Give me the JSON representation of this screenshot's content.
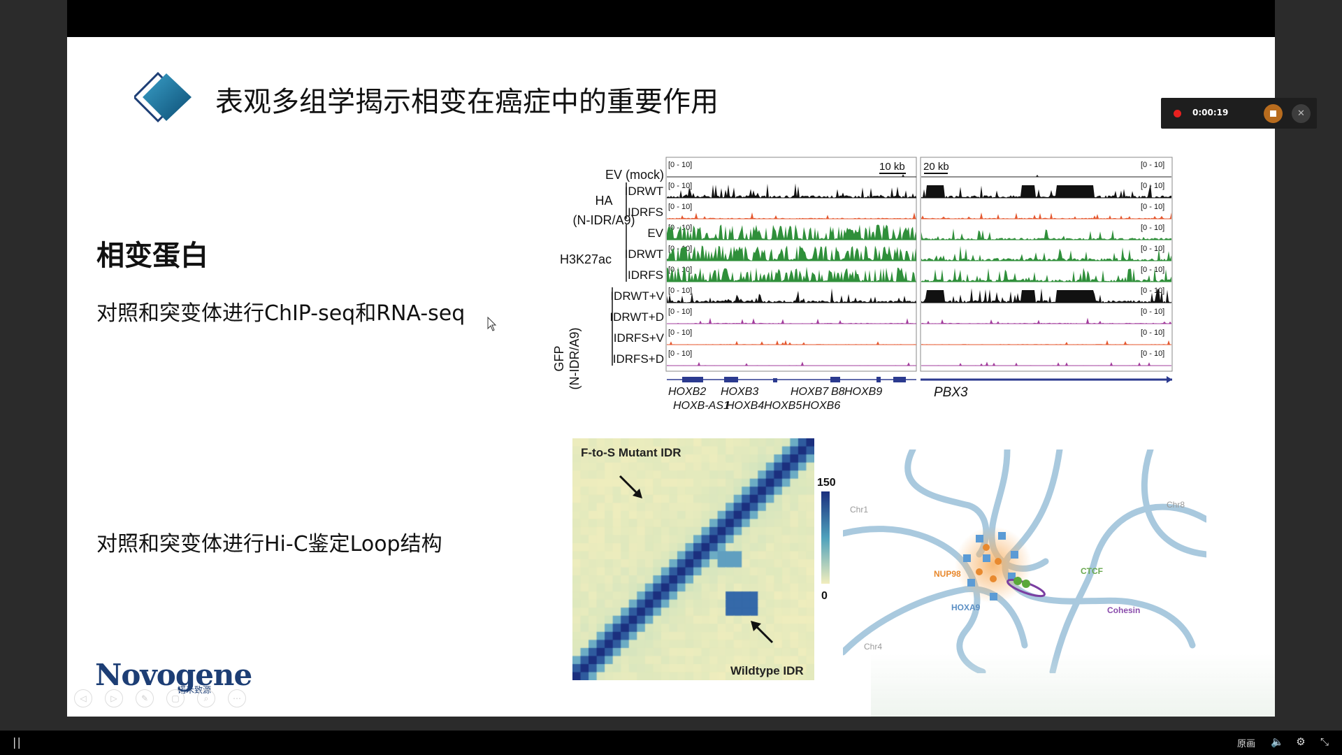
{
  "slide": {
    "title": "表观多组学揭示相变在癌症中的重要作用",
    "section_title": "相变蛋白",
    "desc_chip": "对照和突变体进行ChIP-seq和RNA-seq",
    "desc_hic": "对照和突变体进行Hi-C鉴定Loop结构"
  },
  "recorder": {
    "time": "0:00:19"
  },
  "logo": {
    "text": "Novogene",
    "sub": "诺禾致源"
  },
  "bottom_bar": {
    "original_label": "原画"
  },
  "figure_tracks": {
    "scale_left": "10 kb",
    "scale_right": "20 kb",
    "range_label": "[0 - 10]",
    "rows": [
      {
        "label": "EV (mock)",
        "color": "#222222"
      },
      {
        "label": "IDRWT",
        "color": "#111111"
      },
      {
        "label": "IDRFS",
        "color": "#e4572e"
      },
      {
        "label": "EV",
        "color": "#2f8f3a"
      },
      {
        "label": "IDRWT",
        "color": "#2f8f3a"
      },
      {
        "label": "IDRFS",
        "color": "#2f8f3a"
      },
      {
        "label": "IDRWT+V",
        "color": "#111111"
      },
      {
        "label": "IDRWT+D",
        "color": "#a23c9c"
      },
      {
        "label": "IDRFS+V",
        "color": "#e4572e"
      },
      {
        "label": "IDRFS+D",
        "color": "#a23c9c"
      }
    ],
    "group_ha": "HA",
    "group_ha_sub": "(N-IDR/A9)",
    "group_h3k": "H3K27ac",
    "group_gfp": "GFP",
    "group_gfp_sub": "(N-IDR/A9)",
    "genes_top": [
      "HOXB2",
      "HOXB3",
      "HOXB7",
      "B8",
      "HOXB9"
    ],
    "genes_bottom": [
      "HOXB-AS1",
      "HOXB4",
      "HOXB5",
      "HOXB6"
    ],
    "gene_right": "PBX3"
  },
  "figure_hic": {
    "label_top": "F-to-S Mutant IDR",
    "label_bottom": "Wildtype IDR",
    "scale_max": "150",
    "scale_min": "0"
  },
  "figure_model": {
    "chr1": "Chr1",
    "chr8": "Chr8",
    "chr4": "Chr4",
    "nup98": "NUP98",
    "hoxa9": "HOXA9",
    "ctcf": "CTCF",
    "cohesin": "Cohesin"
  }
}
